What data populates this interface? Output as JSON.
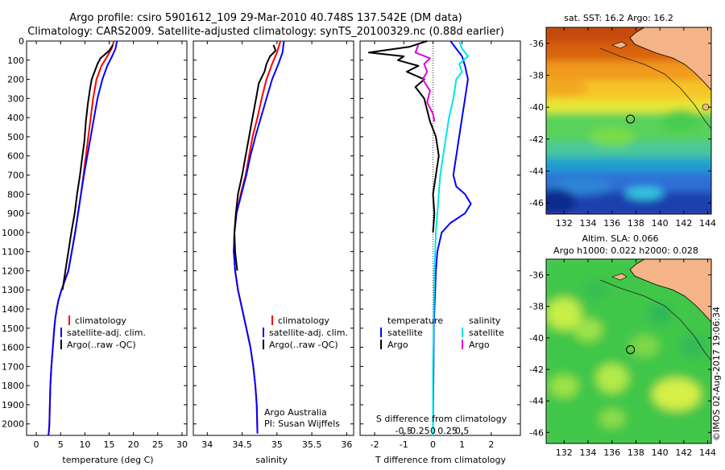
{
  "header": {
    "line1": "Argo profile: csiro 5901612_109 29-Mar-2010 40.748S 137.542E (DM data)",
    "line2": "Climatology: CARS2009. Satellite-adjusted climatology: synTS_20100329.nc (0.88d earlier)"
  },
  "colors": {
    "climatology": "#ff0000",
    "satellite": "#0000ff",
    "argo": "#000000",
    "sat_salinity": "#00e5e5",
    "argo_salinity": "#e000e0",
    "land": "#f4b487"
  },
  "chart_data": [
    {
      "type": "line",
      "name": "temperature-profile",
      "xlabel": "temperature (deg C)",
      "ylabel": "",
      "xlim": [
        -2,
        31
      ],
      "ylim": [
        2060,
        0
      ],
      "xticks": [
        0,
        5,
        10,
        15,
        20,
        25,
        30
      ],
      "yticks": [
        0,
        100,
        200,
        300,
        400,
        500,
        600,
        700,
        800,
        900,
        1000,
        1100,
        1200,
        1300,
        1400,
        1500,
        1600,
        1700,
        1800,
        1900,
        2000
      ],
      "legend": [
        "climatology",
        "satellite-adj. clim.",
        "Argo(..raw -QC)"
      ],
      "series": [
        {
          "name": "climatology",
          "color": "#ff0000",
          "x": [
            16.0,
            15.5,
            14.6,
            13.4,
            12.4,
            11.7,
            11.2,
            10.7,
            10.2,
            9.7,
            9.2,
            8.6,
            8.0,
            7.3,
            6.6,
            5.9,
            5.2,
            4.6,
            4.2,
            3.9,
            3.7,
            3.4,
            3.1,
            2.9,
            2.8,
            2.7,
            2.6,
            2.5
          ],
          "y": [
            0,
            40,
            80,
            130,
            200,
            300,
            400,
            500,
            600,
            700,
            800,
            900,
            1000,
            1100,
            1200,
            1250,
            1300,
            1350,
            1400,
            1450,
            1500,
            1600,
            1700,
            1800,
            1900,
            2000,
            2040,
            2060
          ]
        },
        {
          "name": "satellite-adj. clim.",
          "color": "#0000ff",
          "x": [
            16.6,
            16.3,
            15.6,
            14.6,
            13.6,
            12.6,
            11.9,
            11.2,
            10.5,
            9.8,
            9.2,
            8.6,
            8.0,
            7.3,
            6.6,
            5.9,
            5.2,
            4.6,
            4.2,
            3.9,
            3.7,
            3.4,
            3.1,
            2.9,
            2.8,
            2.7,
            2.6,
            2.5
          ],
          "y": [
            0,
            40,
            80,
            130,
            200,
            300,
            400,
            500,
            600,
            700,
            800,
            900,
            1000,
            1100,
            1200,
            1250,
            1300,
            1350,
            1400,
            1450,
            1500,
            1600,
            1700,
            1800,
            1900,
            2000,
            2040,
            2060
          ]
        },
        {
          "name": "Argo(..raw -QC)",
          "color": "#000000",
          "x": [
            15.8,
            15.0,
            14.1,
            13.2,
            12.6,
            12.0,
            11.4,
            11.0,
            10.6,
            10.2,
            9.9,
            9.5,
            9.0,
            8.4,
            7.9,
            7.2,
            6.6,
            6.0,
            5.4
          ],
          "y": [
            20,
            50,
            70,
            90,
            120,
            160,
            200,
            260,
            330,
            420,
            520,
            600,
            700,
            800,
            900,
            1000,
            1100,
            1200,
            1300
          ]
        }
      ]
    },
    {
      "type": "line",
      "name": "salinity-profile",
      "xlabel": "salinity",
      "ylabel": "",
      "xlim": [
        33.8,
        36.1
      ],
      "ylim": [
        2060,
        0
      ],
      "xticks": [
        34,
        34.5,
        35,
        35.5,
        36
      ],
      "legend": [
        "climatology",
        "satellite-adj. clim.",
        "Argo(..raw -QC)"
      ],
      "annotation": [
        "Argo Australia",
        "PI: Susan Wijffels"
      ],
      "series": [
        {
          "name": "climatology",
          "color": "#ff0000",
          "x": [
            35.05,
            35.0,
            34.93,
            34.85,
            34.78,
            34.72,
            34.65,
            34.6,
            34.55,
            34.48,
            34.42,
            34.39,
            34.38,
            34.4,
            34.44,
            34.5,
            34.56,
            34.62,
            34.66,
            34.69,
            34.71,
            34.72
          ],
          "y": [
            0,
            60,
            120,
            200,
            300,
            400,
            500,
            600,
            700,
            800,
            900,
            1000,
            1100,
            1200,
            1300,
            1400,
            1500,
            1600,
            1700,
            1800,
            1900,
            2050
          ]
        },
        {
          "name": "satellite-adj. clim.",
          "color": "#0000ff",
          "x": [
            35.1,
            35.08,
            35.02,
            34.93,
            34.85,
            34.77,
            34.69,
            34.62,
            34.56,
            34.49,
            34.42,
            34.39,
            34.38,
            34.4,
            34.44,
            34.5,
            34.56,
            34.62,
            34.66,
            34.69,
            34.71,
            34.72
          ],
          "y": [
            0,
            60,
            120,
            200,
            300,
            400,
            500,
            600,
            700,
            800,
            900,
            1000,
            1100,
            1200,
            1300,
            1400,
            1500,
            1600,
            1700,
            1800,
            1900,
            2050
          ]
        },
        {
          "name": "Argo(..raw -QC)",
          "color": "#000000",
          "x": [
            34.95,
            34.98,
            34.9,
            34.85,
            34.82,
            34.74,
            34.7,
            34.65,
            34.6,
            34.55,
            34.5,
            34.44,
            34.41,
            34.39,
            34.4,
            34.43
          ],
          "y": [
            20,
            50,
            80,
            120,
            160,
            220,
            300,
            400,
            500,
            600,
            700,
            800,
            900,
            1000,
            1100,
            1200
          ]
        }
      ]
    },
    {
      "type": "line",
      "name": "difference-from-climatology",
      "xlabel": "T difference from climatology",
      "x2label": "S difference from climatology",
      "xlim": [
        -2.5,
        3
      ],
      "ylim": [
        2060,
        0
      ],
      "xticks": [
        -2,
        -1,
        0,
        1,
        2
      ],
      "x2ticks": [
        "-0.5",
        "-0.25",
        "0",
        "0.25",
        "0.5"
      ],
      "legend_temperature": [
        "temperature",
        "satellite",
        "Argo"
      ],
      "legend_salinity": [
        "salinity",
        "satellite",
        "Argo"
      ],
      "series": [
        {
          "name": "temperature satellite",
          "color": "#0000ff",
          "x": [
            0.6,
            0.8,
            1.0,
            1.1,
            1.2,
            1.1,
            1.0,
            0.9,
            0.8,
            0.7,
            0.8,
            1.1,
            1.3,
            1.1,
            0.6,
            0.3,
            0.15,
            0.1,
            0.08,
            0.05,
            0.03,
            0.02,
            0.01,
            0.0
          ],
          "y": [
            0,
            40,
            80,
            130,
            200,
            300,
            400,
            500,
            600,
            700,
            760,
            800,
            850,
            900,
            950,
            1000,
            1100,
            1200,
            1300,
            1400,
            1500,
            1700,
            1900,
            2060
          ]
        },
        {
          "name": "temperature Argo",
          "color": "#000000",
          "x": [
            -0.2,
            -0.8,
            -2.2,
            -1.0,
            -1.2,
            -0.5,
            -0.9,
            -0.3,
            -0.6,
            -0.3,
            -0.2,
            -0.1,
            0.1,
            0.2,
            0.1,
            0.0,
            0.05,
            0.0
          ],
          "y": [
            0,
            30,
            60,
            80,
            100,
            130,
            160,
            200,
            240,
            300,
            360,
            420,
            500,
            600,
            700,
            800,
            900,
            1000
          ]
        },
        {
          "name": "salinity satellite",
          "color": "#00e5e5",
          "x": [
            0.9,
            1.0,
            1.2,
            0.9,
            1.0,
            0.8,
            0.7,
            0.55,
            0.45,
            0.35,
            0.25,
            0.2,
            0.15,
            0.1,
            0.05,
            0.03,
            0.0,
            0.0
          ],
          "y": [
            0,
            40,
            80,
            120,
            160,
            200,
            300,
            400,
            500,
            600,
            700,
            800,
            900,
            1000,
            1200,
            1400,
            1700,
            2060
          ]
        },
        {
          "name": "salinity Argo",
          "color": "#e000e0",
          "x": [
            -0.5,
            -0.6,
            -0.1,
            -0.3,
            -0.2,
            -0.35,
            -0.1,
            -0.2,
            0.0,
            0.05
          ],
          "y": [
            20,
            60,
            90,
            120,
            160,
            200,
            260,
            320,
            380,
            420
          ]
        }
      ]
    },
    {
      "type": "heatmap",
      "name": "sst-map",
      "title": "sat. SST: 16.2  Argo: 16.2",
      "xlim": [
        130.5,
        144.3
      ],
      "ylim": [
        -46.7,
        -35.0
      ],
      "xticks": [
        132,
        134,
        136,
        138,
        140,
        142,
        144
      ],
      "yticks": [
        -36,
        -38,
        -40,
        -42,
        -44,
        -46
      ],
      "marker": {
        "lon": 137.542,
        "lat": -40.748
      }
    },
    {
      "type": "heatmap",
      "name": "sla-map",
      "title": [
        "Altim. SLA: 0.066",
        "Argo h1000: 0.022 h2000: 0.028"
      ],
      "xlim": [
        130.5,
        144.3
      ],
      "ylim": [
        -46.7,
        -35.0
      ],
      "xticks": [
        132,
        134,
        136,
        138,
        140,
        142,
        144
      ],
      "yticks": [
        -36,
        -38,
        -40,
        -42,
        -44,
        -46
      ],
      "marker": {
        "lon": 137.542,
        "lat": -40.748
      }
    }
  ],
  "footer": {
    "stamp": "©IMOS 02-Aug-2017 19:06:34"
  }
}
